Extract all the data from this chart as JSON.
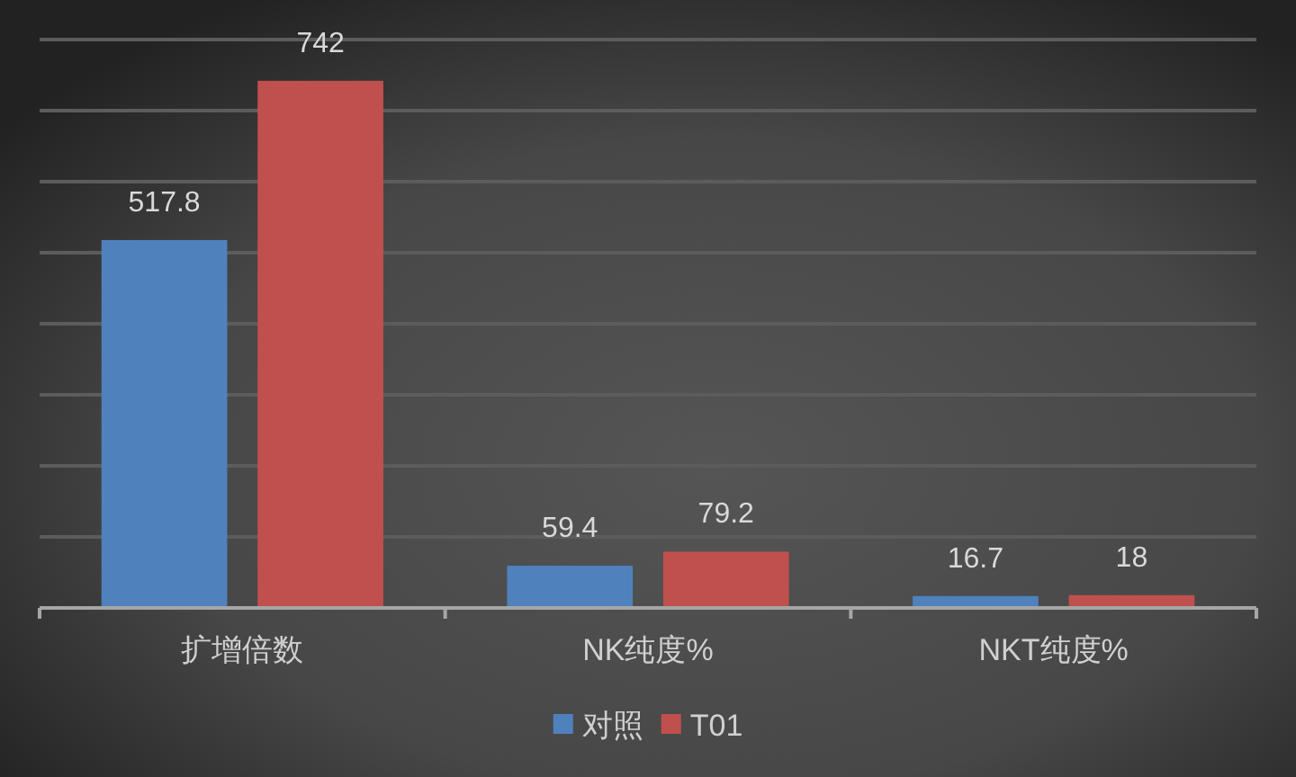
{
  "chart_data": {
    "type": "bar",
    "categories": [
      "扩增倍数",
      "NK纯度%",
      "NKT纯度%"
    ],
    "series": [
      {
        "name": "对照",
        "color": "#4f81bd",
        "values": [
          517.8,
          59.4,
          16.7
        ]
      },
      {
        "name": "T01",
        "color": "#c0504d",
        "values": [
          742,
          79.2,
          18
        ]
      }
    ],
    "ylim": [
      0,
      800
    ],
    "yticks": [
      0,
      100,
      200,
      300,
      400,
      500,
      600,
      700,
      800
    ],
    "grid": "y",
    "tick_labels": "x",
    "legend": "bottom",
    "data_labels": true
  }
}
